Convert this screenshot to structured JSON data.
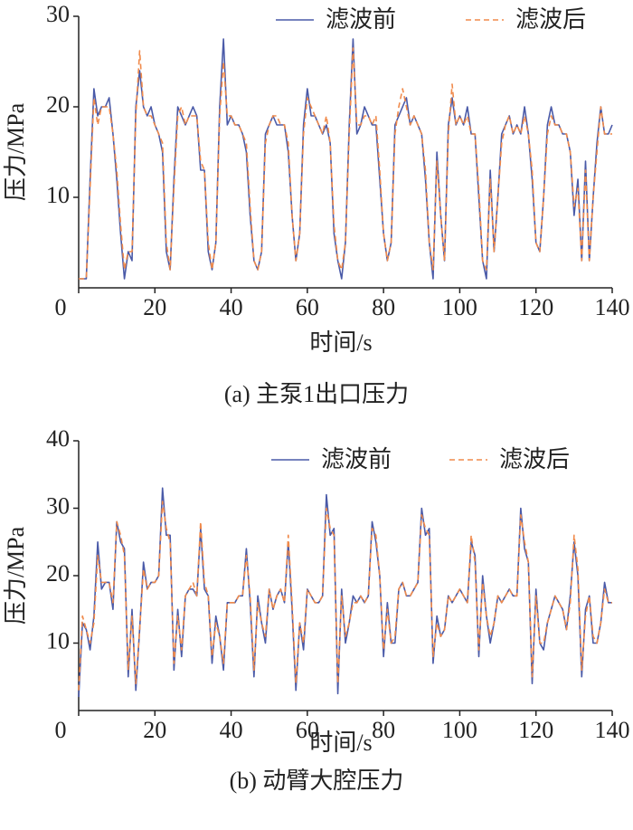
{
  "chart_data": [
    {
      "type": "line",
      "title": "(a)  主泵1出口压力",
      "xlabel": "时间/s",
      "ylabel": "压力/MPa",
      "xlim": [
        0,
        140
      ],
      "ylim": [
        0,
        30
      ],
      "xticks": [
        0,
        20,
        40,
        60,
        80,
        100,
        120,
        140
      ],
      "yticks": [
        10,
        20,
        30
      ],
      "x": [
        0,
        1,
        2,
        3,
        4,
        5,
        6,
        7,
        8,
        9,
        10,
        11,
        12,
        13,
        14,
        15,
        16,
        17,
        18,
        19,
        20,
        21,
        22,
        23,
        24,
        25,
        26,
        27,
        28,
        29,
        30,
        31,
        32,
        33,
        34,
        35,
        36,
        37,
        38,
        39,
        40,
        41,
        42,
        43,
        44,
        45,
        46,
        47,
        48,
        49,
        50,
        51,
        52,
        53,
        54,
        55,
        56,
        57,
        58,
        59,
        60,
        61,
        62,
        63,
        64,
        65,
        66,
        67,
        68,
        69,
        70,
        71,
        72,
        73,
        74,
        75,
        76,
        77,
        78,
        79,
        80,
        81,
        82,
        83,
        84,
        85,
        86,
        87,
        88,
        89,
        90,
        91,
        92,
        93,
        94,
        95,
        96,
        97,
        98,
        99,
        100,
        101,
        102,
        103,
        104,
        105,
        106,
        107,
        108,
        109,
        110,
        111,
        112,
        113,
        114,
        115,
        116,
        117,
        118,
        119,
        120,
        121,
        122,
        123,
        124,
        125,
        126,
        127,
        128,
        129,
        130,
        131,
        132,
        133,
        134,
        135,
        136,
        137,
        138,
        139,
        140
      ],
      "series": [
        {
          "name": "滤波前",
          "color": "#4a5aa8",
          "dash": false,
          "values": [
            1,
            1,
            1,
            12,
            22,
            19,
            20,
            20,
            21,
            17,
            12,
            6,
            1,
            4,
            3,
            20,
            24,
            20,
            19,
            20,
            18,
            17,
            15,
            4,
            2,
            12,
            20,
            19,
            18,
            19,
            20,
            19,
            13,
            13,
            4,
            2,
            5,
            20,
            27.5,
            18,
            19,
            18,
            18,
            17,
            15,
            8,
            3,
            2,
            4,
            17,
            18,
            19,
            18,
            18,
            18,
            15,
            8,
            3,
            6,
            18,
            22,
            19,
            19,
            18,
            17,
            18,
            16,
            6,
            3,
            1,
            5,
            18,
            27.5,
            17,
            18,
            20,
            19,
            18,
            18,
            12,
            6,
            3,
            5,
            18,
            19,
            20,
            21,
            18,
            19,
            18,
            17,
            12,
            5,
            1,
            15,
            8,
            3,
            18,
            21,
            18,
            19,
            18,
            20,
            17,
            17,
            10,
            3,
            1,
            13,
            4,
            10,
            17,
            18,
            19,
            17,
            18,
            17,
            20,
            17,
            12,
            5,
            4,
            10,
            18,
            20,
            18,
            18,
            17,
            17,
            15,
            8,
            12,
            3,
            14,
            3,
            10,
            16,
            20,
            17,
            17,
            18
          ]
        },
        {
          "name": "滤波后",
          "color": "#f08a4b",
          "dash": true,
          "values": [
            1,
            1,
            1,
            11,
            21,
            18,
            20,
            20,
            20,
            17,
            13,
            7,
            2,
            4,
            4,
            19,
            26.2,
            20,
            19,
            19,
            18,
            17,
            16,
            5,
            2,
            11,
            19,
            20,
            18,
            19,
            19,
            19,
            14,
            13,
            5,
            2,
            5,
            19,
            25,
            19,
            19,
            18,
            18,
            17,
            16,
            9,
            3,
            2,
            4,
            16,
            18,
            19,
            19,
            18,
            18,
            16,
            8,
            3,
            6,
            17,
            21,
            20,
            19,
            18,
            17,
            19,
            16,
            7,
            3,
            2,
            5,
            17,
            26.5,
            18,
            18,
            19,
            19,
            18,
            19,
            13,
            6,
            3,
            5,
            17,
            20,
            22,
            20,
            18,
            19,
            18,
            17,
            13,
            5,
            2,
            14,
            8,
            3,
            17,
            22.5,
            18,
            19,
            18,
            19,
            17,
            17,
            11,
            3,
            2,
            12,
            4,
            10,
            16,
            18,
            19,
            17,
            18,
            17,
            19,
            17,
            13,
            5,
            4,
            10,
            17,
            19,
            18,
            18,
            17,
            17,
            15,
            9,
            11,
            3,
            13,
            3,
            10,
            15,
            20,
            17,
            17,
            17
          ]
        }
      ]
    },
    {
      "type": "line",
      "title": "(b)  动臂大腔压力",
      "xlabel": "时间/s",
      "ylabel": "压力/MPa",
      "xlim": [
        0,
        140
      ],
      "ylim": [
        0,
        40
      ],
      "xticks": [
        0,
        20,
        40,
        60,
        80,
        100,
        120,
        140
      ],
      "yticks": [
        10,
        20,
        30,
        40
      ],
      "x": [
        0,
        1,
        2,
        3,
        4,
        5,
        6,
        7,
        8,
        9,
        10,
        11,
        12,
        13,
        14,
        15,
        16,
        17,
        18,
        19,
        20,
        21,
        22,
        23,
        24,
        25,
        26,
        27,
        28,
        29,
        30,
        31,
        32,
        33,
        34,
        35,
        36,
        37,
        38,
        39,
        40,
        41,
        42,
        43,
        44,
        45,
        46,
        47,
        48,
        49,
        50,
        51,
        52,
        53,
        54,
        55,
        56,
        57,
        58,
        59,
        60,
        61,
        62,
        63,
        64,
        65,
        66,
        67,
        68,
        69,
        70,
        71,
        72,
        73,
        74,
        75,
        76,
        77,
        78,
        79,
        80,
        81,
        82,
        83,
        84,
        85,
        86,
        87,
        88,
        89,
        90,
        91,
        92,
        93,
        94,
        95,
        96,
        97,
        98,
        99,
        100,
        101,
        102,
        103,
        104,
        105,
        106,
        107,
        108,
        109,
        110,
        111,
        112,
        113,
        114,
        115,
        116,
        117,
        118,
        119,
        120,
        121,
        122,
        123,
        124,
        125,
        126,
        127,
        128,
        129,
        130,
        131,
        132,
        133,
        134,
        135,
        136,
        137,
        138,
        139,
        140
      ],
      "series": [
        {
          "name": "滤波前",
          "color": "#4a5aa8",
          "dash": false,
          "values": [
            2,
            13,
            12,
            9,
            14,
            25,
            18,
            19,
            19,
            15,
            28,
            25,
            24,
            5,
            15,
            3,
            12,
            22,
            18,
            19,
            19,
            20,
            33,
            26,
            26,
            6,
            15,
            8,
            17,
            18,
            18,
            17,
            27,
            18,
            17,
            7,
            14,
            11,
            6,
            16,
            16,
            16,
            17,
            17,
            24,
            16,
            5,
            17,
            13,
            10,
            18,
            15,
            17,
            18,
            16,
            25,
            15,
            3,
            13,
            9,
            18,
            17,
            16,
            16,
            17,
            32,
            26,
            27,
            2.5,
            18,
            10,
            13,
            17,
            16,
            17,
            16,
            17,
            28,
            25,
            20,
            8,
            16,
            10,
            10,
            18,
            19,
            17,
            17,
            18,
            19,
            30,
            26,
            27,
            7,
            14,
            11,
            12,
            17,
            16,
            17,
            18,
            17,
            16,
            25,
            23,
            8,
            20,
            14,
            10,
            13,
            17,
            16,
            17,
            18,
            17,
            17,
            30,
            24,
            22,
            4,
            18,
            10,
            9,
            13,
            15,
            17,
            16,
            15,
            12,
            17,
            25,
            20,
            5,
            15,
            17,
            10,
            10,
            13,
            19,
            16,
            16
          ]
        },
        {
          "name": "滤波后",
          "color": "#f08a4b",
          "dash": true,
          "values": [
            3,
            14,
            12,
            10,
            13,
            23,
            19,
            19,
            19,
            16,
            28,
            26,
            23,
            6,
            14,
            4,
            12,
            21,
            18,
            19,
            19,
            20,
            31,
            27,
            25,
            7,
            14,
            9,
            17,
            18,
            19,
            17,
            28,
            19,
            17,
            8,
            13,
            11,
            7,
            16,
            16,
            16,
            17,
            17,
            23,
            17,
            6,
            16,
            13,
            11,
            18,
            15,
            17,
            18,
            16,
            26,
            16,
            4,
            13,
            10,
            18,
            17,
            16,
            16,
            17,
            30,
            27,
            26,
            4,
            17,
            11,
            13,
            16,
            16,
            17,
            16,
            17,
            27,
            26,
            20,
            9,
            15,
            10,
            11,
            18,
            19,
            17,
            17,
            18,
            19,
            29,
            27,
            26,
            8,
            13,
            11,
            12,
            17,
            16,
            17,
            18,
            17,
            16,
            26,
            22,
            9,
            19,
            14,
            11,
            13,
            17,
            16,
            17,
            18,
            17,
            17,
            29,
            25,
            22,
            5,
            17,
            10,
            10,
            13,
            15,
            17,
            16,
            15,
            12,
            16,
            26,
            21,
            6,
            14,
            17,
            11,
            10,
            13,
            18,
            16,
            16
          ]
        }
      ]
    }
  ]
}
